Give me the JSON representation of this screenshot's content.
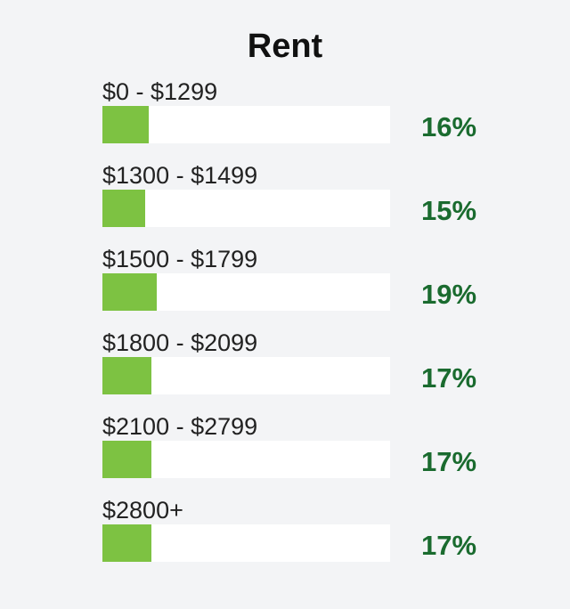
{
  "chart_data": {
    "type": "bar",
    "title": "Rent",
    "categories": [
      "$0 - $1299",
      "$1300 - $1499",
      "$1500 - $1799",
      "$1800 - $2099",
      "$2100 - $2799",
      "$2800+"
    ],
    "values": [
      16,
      15,
      19,
      17,
      17,
      17
    ],
    "data_labels": [
      "16%",
      "15%",
      "19%",
      "17%",
      "17%",
      "17%"
    ],
    "ylim": [
      0,
      100
    ],
    "orientation": "horizontal",
    "grid": false,
    "colors": {
      "bar": "#7dc242",
      "track": "#ffffff",
      "label": "#1a6b2f",
      "title": "#111111"
    }
  }
}
